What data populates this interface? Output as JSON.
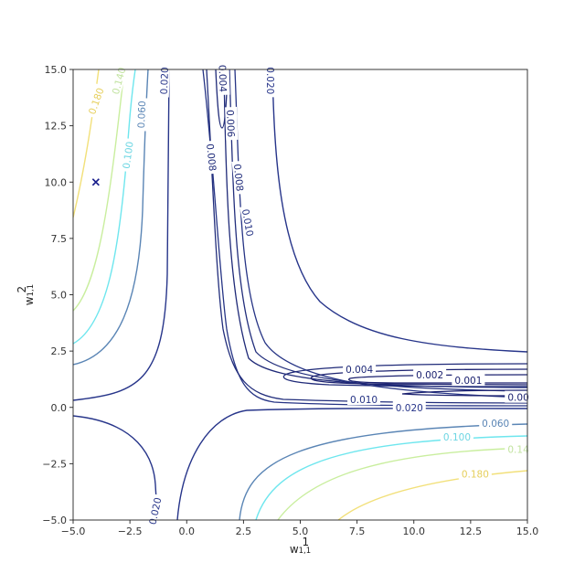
{
  "chart_data": {
    "type": "contour",
    "title": "",
    "xlabel": "w",
    "xlabel_sup": "1",
    "xlabel_sub": "1,1",
    "ylabel": "w",
    "ylabel_sup": "2",
    "ylabel_sub": "1,1",
    "xlim": [
      -5.0,
      15.0
    ],
    "ylim": [
      -5.0,
      15.0
    ],
    "grid": false,
    "x_ticks": [
      -5.0,
      -2.5,
      0.0,
      2.5,
      5.0,
      7.5,
      10.0,
      12.5,
      15.0
    ],
    "y_ticks": [
      -5.0,
      -2.5,
      0.0,
      2.5,
      5.0,
      7.5,
      10.0,
      12.5,
      15.0
    ],
    "x_tick_labels": [
      "−5.0",
      "−2.5",
      "0.0",
      "2.5",
      "5.0",
      "7.5",
      "10.0",
      "12.5",
      "15.0"
    ],
    "y_tick_labels": [
      "−5.0",
      "−2.5",
      "0.0",
      "2.5",
      "5.0",
      "7.5",
      "10.0",
      "12.5",
      "15.0"
    ],
    "levels": [
      {
        "value": 0.001,
        "color": "#1c2270"
      },
      {
        "value": 0.002,
        "color": "#1c2270"
      },
      {
        "value": 0.004,
        "color": "#1f2a78"
      },
      {
        "value": 0.006,
        "color": "#1f2a78"
      },
      {
        "value": 0.008,
        "color": "#222e7c"
      },
      {
        "value": 0.01,
        "color": "#263485"
      },
      {
        "value": 0.02,
        "color": "#27358a"
      },
      {
        "value": 0.06,
        "color": "#5a85b5"
      },
      {
        "value": 0.1,
        "color": "#6ee6ee"
      },
      {
        "value": 0.14,
        "color": "#c9ee9e"
      },
      {
        "value": 0.18,
        "color": "#f2e07a"
      }
    ],
    "contour_labels": [
      {
        "text": "0.180",
        "x": -4.0,
        "y": 13.6,
        "color": "#e6cf5c",
        "angle": -70
      },
      {
        "text": "0.140",
        "x": -3.0,
        "y": 14.5,
        "color": "#c2e3a0",
        "angle": -75
      },
      {
        "text": "0.060",
        "x": -2.0,
        "y": 13.0,
        "color": "#5a85b5",
        "angle": -88
      },
      {
        "text": "0.100",
        "x": -2.6,
        "y": 11.2,
        "color": "#6dd6e3",
        "angle": -82
      },
      {
        "text": "0.020",
        "x": -1.0,
        "y": 14.5,
        "color": "#27358a",
        "angle": -88
      },
      {
        "text": "0.004",
        "x": 1.6,
        "y": 14.6,
        "color": "#1f2a78",
        "angle": 88
      },
      {
        "text": "0.006",
        "x": 1.95,
        "y": 12.6,
        "color": "#1f2a78",
        "angle": 88
      },
      {
        "text": "0.008",
        "x": 1.1,
        "y": 11.1,
        "color": "#222e7c",
        "angle": 84
      },
      {
        "text": "0.008",
        "x": 2.3,
        "y": 10.2,
        "color": "#222e7c",
        "angle": 84
      },
      {
        "text": "0.020",
        "x": 3.7,
        "y": 14.5,
        "color": "#27358a",
        "angle": 90
      },
      {
        "text": "0.010",
        "x": 2.7,
        "y": 8.2,
        "color": "#263485",
        "angle": 80
      },
      {
        "text": "0.004",
        "x": 7.6,
        "y": 1.7,
        "color": "#1f2a78",
        "angle": 0
      },
      {
        "text": "0.002",
        "x": 10.7,
        "y": 1.45,
        "color": "#1c2270",
        "angle": 0
      },
      {
        "text": "0.001",
        "x": 12.4,
        "y": 1.2,
        "color": "#1c2270",
        "angle": 0
      },
      {
        "text": "0.010",
        "x": 7.8,
        "y": 0.35,
        "color": "#263485",
        "angle": 0
      },
      {
        "text": "0.020",
        "x": 9.8,
        "y": 0.0,
        "color": "#27358a",
        "angle": 0
      },
      {
        "text": "0.00",
        "x": 14.6,
        "y": 0.45,
        "color": "#1c2270",
        "angle": 0
      },
      {
        "text": "0.060",
        "x": 13.6,
        "y": -0.7,
        "color": "#5a85b5",
        "angle": 0
      },
      {
        "text": "0.100",
        "x": 11.9,
        "y": -1.3,
        "color": "#6dd6e3",
        "angle": 0
      },
      {
        "text": "0.14",
        "x": 14.6,
        "y": -1.85,
        "color": "#c2e3a0",
        "angle": 0
      },
      {
        "text": "0.180",
        "x": 12.7,
        "y": -2.95,
        "color": "#e6cf5c",
        "angle": 0
      },
      {
        "text": "0.020",
        "x": -1.4,
        "y": -4.6,
        "color": "#27358a",
        "angle": -78
      }
    ],
    "marker": {
      "x": -4.0,
      "y": 10.0,
      "symbol": "x",
      "color": "#1a1f8c"
    }
  }
}
